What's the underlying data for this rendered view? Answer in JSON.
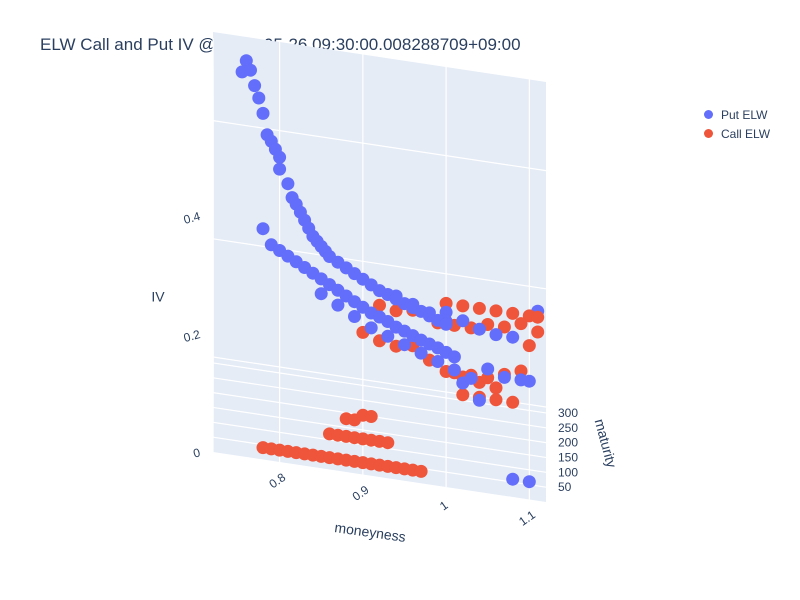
{
  "title": "ELW Call and Put IV @ 2023-05-26 09:30:00.008288709+09:00",
  "legend": [
    {
      "name": "Put ELW",
      "color": "#636efa"
    },
    {
      "name": "Call ELW",
      "color": "#ef553b"
    }
  ],
  "chart_data": {
    "type": "scatter3d",
    "title": "ELW Call and Put IV @ 2023-05-26 09:30:00.008288709+09:00",
    "x_label": "moneyness",
    "y_label": "maturity",
    "z_label": "IV",
    "x_ticks": [
      "0.8",
      "0.9",
      "1",
      "1.1"
    ],
    "y_ticks": [
      "50",
      "100",
      "150",
      "200",
      "250",
      "300"
    ],
    "z_ticks": [
      "0",
      "0.2",
      "0.4"
    ],
    "x_range": [
      0.72,
      1.12
    ],
    "y_range": [
      0,
      320
    ],
    "z_range": [
      0,
      0.55
    ],
    "background": "#e5ecf6",
    "series": [
      {
        "name": "Put ELW",
        "color": "#636efa",
        "points": [
          [
            0.76,
            300,
            0.52
          ],
          [
            0.755,
            300,
            0.5
          ],
          [
            0.765,
            290,
            0.51
          ],
          [
            0.77,
            280,
            0.49
          ],
          [
            0.775,
            280,
            0.47
          ],
          [
            0.78,
            270,
            0.45
          ],
          [
            0.785,
            260,
            0.42
          ],
          [
            0.79,
            260,
            0.41
          ],
          [
            0.795,
            255,
            0.4
          ],
          [
            0.8,
            250,
            0.39
          ],
          [
            0.8,
            250,
            0.37
          ],
          [
            0.81,
            245,
            0.35
          ],
          [
            0.815,
            240,
            0.33
          ],
          [
            0.82,
            240,
            0.32
          ],
          [
            0.825,
            235,
            0.31
          ],
          [
            0.83,
            230,
            0.3
          ],
          [
            0.835,
            225,
            0.29
          ],
          [
            0.84,
            220,
            0.28
          ],
          [
            0.845,
            215,
            0.275
          ],
          [
            0.85,
            210,
            0.27
          ],
          [
            0.855,
            205,
            0.265
          ],
          [
            0.86,
            200,
            0.26
          ],
          [
            0.87,
            195,
            0.255
          ],
          [
            0.88,
            190,
            0.25
          ],
          [
            0.89,
            185,
            0.245
          ],
          [
            0.9,
            180,
            0.24
          ],
          [
            0.91,
            175,
            0.235
          ],
          [
            0.92,
            170,
            0.23
          ],
          [
            0.93,
            165,
            0.228
          ],
          [
            0.94,
            160,
            0.225
          ],
          [
            0.95,
            155,
            0.222
          ],
          [
            0.96,
            150,
            0.22
          ],
          [
            0.97,
            145,
            0.218
          ],
          [
            0.98,
            140,
            0.215
          ],
          [
            0.99,
            135,
            0.212
          ],
          [
            1.0,
            130,
            0.21
          ],
          [
            0.78,
            220,
            0.28
          ],
          [
            0.79,
            210,
            0.26
          ],
          [
            0.8,
            205,
            0.255
          ],
          [
            0.81,
            200,
            0.25
          ],
          [
            0.82,
            195,
            0.245
          ],
          [
            0.83,
            190,
            0.24
          ],
          [
            0.84,
            185,
            0.235
          ],
          [
            0.85,
            180,
            0.23
          ],
          [
            0.86,
            175,
            0.225
          ],
          [
            0.87,
            170,
            0.22
          ],
          [
            0.88,
            165,
            0.215
          ],
          [
            0.89,
            160,
            0.21
          ],
          [
            0.9,
            155,
            0.205
          ],
          [
            0.91,
            150,
            0.2
          ],
          [
            0.92,
            145,
            0.198
          ],
          [
            0.93,
            140,
            0.195
          ],
          [
            0.94,
            135,
            0.19
          ],
          [
            0.95,
            130,
            0.188
          ],
          [
            0.96,
            125,
            0.185
          ],
          [
            0.97,
            120,
            0.182
          ],
          [
            0.98,
            115,
            0.18
          ],
          [
            0.99,
            110,
            0.178
          ],
          [
            1.0,
            105,
            0.175
          ],
          [
            1.01,
            100,
            0.172
          ],
          [
            0.85,
            150,
            0.22
          ],
          [
            0.87,
            140,
            0.21
          ],
          [
            0.89,
            130,
            0.2
          ],
          [
            0.91,
            120,
            0.19
          ],
          [
            0.93,
            110,
            0.185
          ],
          [
            0.95,
            100,
            0.18
          ],
          [
            0.97,
            90,
            0.175
          ],
          [
            0.99,
            80,
            0.17
          ],
          [
            1.01,
            70,
            0.165
          ],
          [
            1.03,
            60,
            0.16
          ],
          [
            1.0,
            250,
            0.17
          ],
          [
            1.02,
            240,
            0.165
          ],
          [
            1.04,
            230,
            0.16
          ],
          [
            1.06,
            220,
            0.16
          ],
          [
            1.08,
            210,
            0.165
          ],
          [
            1.05,
            120,
            0.15
          ],
          [
            1.07,
            110,
            0.145
          ],
          [
            1.09,
            100,
            0.15
          ],
          [
            1.1,
            90,
            0.155
          ],
          [
            1.11,
            300,
            0.17
          ],
          [
            1.1,
            20,
            0.02
          ],
          [
            1.08,
            20,
            0.02
          ],
          [
            1.04,
            90,
            0.11
          ],
          [
            1.02,
            100,
            0.13
          ],
          [
            0.96,
            200,
            0.2
          ],
          [
            0.94,
            210,
            0.205
          ],
          [
            0.98,
            190,
            0.195
          ],
          [
            1.0,
            180,
            0.19
          ]
        ]
      },
      {
        "name": "Call ELW",
        "color": "#ef553b",
        "points": [
          [
            0.78,
            40,
            0.0
          ],
          [
            0.79,
            40,
            0.0
          ],
          [
            0.8,
            40,
            0.0
          ],
          [
            0.81,
            40,
            0.0
          ],
          [
            0.82,
            40,
            0.0
          ],
          [
            0.83,
            40,
            0.0
          ],
          [
            0.84,
            40,
            0.0
          ],
          [
            0.85,
            40,
            0.0
          ],
          [
            0.86,
            40,
            0.0
          ],
          [
            0.87,
            40,
            0.0
          ],
          [
            0.88,
            40,
            0.0
          ],
          [
            0.89,
            40,
            0.0
          ],
          [
            0.9,
            40,
            0.0
          ],
          [
            0.91,
            40,
            0.0
          ],
          [
            0.92,
            40,
            0.0
          ],
          [
            0.93,
            40,
            0.0
          ],
          [
            0.94,
            40,
            0.0
          ],
          [
            0.95,
            40,
            0.0
          ],
          [
            0.96,
            40,
            0.0
          ],
          [
            0.97,
            40,
            0.0
          ],
          [
            0.86,
            80,
            0.02
          ],
          [
            0.87,
            80,
            0.02
          ],
          [
            0.88,
            80,
            0.02
          ],
          [
            0.89,
            80,
            0.02
          ],
          [
            0.9,
            80,
            0.02
          ],
          [
            0.91,
            80,
            0.02
          ],
          [
            0.92,
            80,
            0.02
          ],
          [
            0.93,
            80,
            0.02
          ],
          [
            0.88,
            100,
            0.04
          ],
          [
            0.89,
            100,
            0.04
          ],
          [
            0.9,
            100,
            0.05
          ],
          [
            0.91,
            100,
            0.05
          ],
          [
            0.9,
            200,
            0.14
          ],
          [
            0.92,
            200,
            0.13
          ],
          [
            0.94,
            210,
            0.12
          ],
          [
            0.96,
            220,
            0.12
          ],
          [
            0.98,
            200,
            0.11
          ],
          [
            1.0,
            190,
            0.1
          ],
          [
            1.02,
            180,
            0.1
          ],
          [
            1.04,
            170,
            0.1
          ],
          [
            1.06,
            160,
            0.1
          ],
          [
            0.99,
            250,
            0.15
          ],
          [
            1.01,
            250,
            0.15
          ],
          [
            1.03,
            250,
            0.15
          ],
          [
            1.05,
            250,
            0.16
          ],
          [
            1.07,
            250,
            0.16
          ],
          [
            1.09,
            250,
            0.17
          ],
          [
            1.11,
            260,
            0.18
          ],
          [
            1.0,
            280,
            0.17
          ],
          [
            1.02,
            280,
            0.17
          ],
          [
            1.04,
            280,
            0.17
          ],
          [
            1.06,
            280,
            0.17
          ],
          [
            1.08,
            280,
            0.17
          ],
          [
            1.1,
            280,
            0.17
          ],
          [
            1.01,
            150,
            0.12
          ],
          [
            1.03,
            150,
            0.12
          ],
          [
            1.05,
            150,
            0.12
          ],
          [
            1.07,
            150,
            0.13
          ],
          [
            1.09,
            150,
            0.14
          ],
          [
            1.02,
            120,
            0.1
          ],
          [
            1.04,
            120,
            0.1
          ],
          [
            1.06,
            120,
            0.1
          ],
          [
            1.08,
            120,
            0.1
          ],
          [
            0.92,
            220,
            0.18
          ],
          [
            0.94,
            230,
            0.17
          ],
          [
            0.96,
            240,
            0.17
          ],
          [
            1.1,
            200,
            0.16
          ],
          [
            1.11,
            230,
            0.17
          ]
        ]
      }
    ]
  }
}
